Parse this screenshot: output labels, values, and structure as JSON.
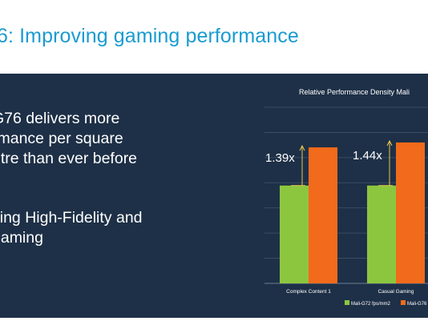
{
  "slide": {
    "title": "6: Improving gaming performance",
    "bullets": [
      "G76 delivers more\nrmance per square\netre than ever before",
      "ving High-Fidelity and\ngaming"
    ]
  },
  "chart_data": {
    "type": "bar",
    "title": "Relative Performance Density Mali",
    "categories": [
      "Complex Content 1",
      "Casual Gaming"
    ],
    "series": [
      {
        "name": "Mali-G72 fps/mm2",
        "color": "#8cc63f",
        "values": [
          1.0,
          1.0
        ]
      },
      {
        "name": "Mali-G76",
        "color": "#f26a1b",
        "values": [
          1.39,
          1.44
        ]
      }
    ],
    "annotations": [
      "1.39x",
      "1.44x"
    ],
    "annotation_color": "#e8c84a",
    "ylim": [
      0,
      1.8
    ],
    "grid": true,
    "legend": "bottom"
  }
}
